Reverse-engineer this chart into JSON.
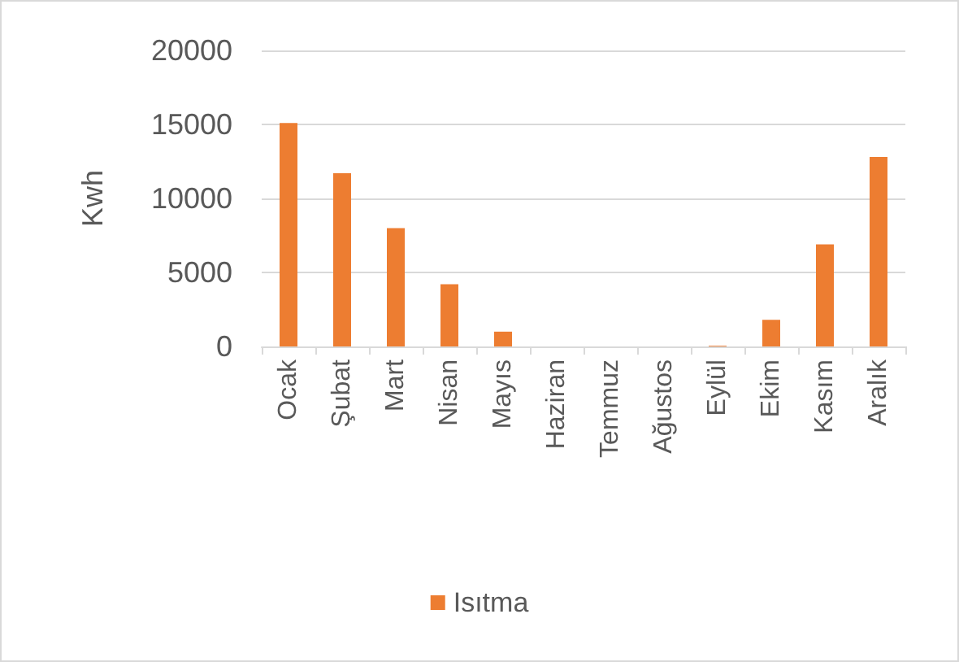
{
  "chart_data": {
    "type": "bar",
    "ylabel": "Kwh",
    "categories": [
      "Ocak",
      "Şubat",
      "Mart",
      "Nisan",
      "Mayıs",
      "Haziran",
      "Temmuz",
      "Ağustos",
      "Eylül",
      "Ekim",
      "Kasım",
      "Aralık"
    ],
    "series": [
      {
        "name": "Isıtma",
        "color": "#ed7d31",
        "values": [
          15100,
          11700,
          8000,
          4200,
          1000,
          0,
          0,
          0,
          50,
          1800,
          6900,
          12800
        ]
      }
    ],
    "ylim": [
      0,
      20000
    ],
    "yticks": [
      0,
      5000,
      10000,
      15000,
      20000
    ],
    "grid": "y",
    "legend": "bottom"
  }
}
